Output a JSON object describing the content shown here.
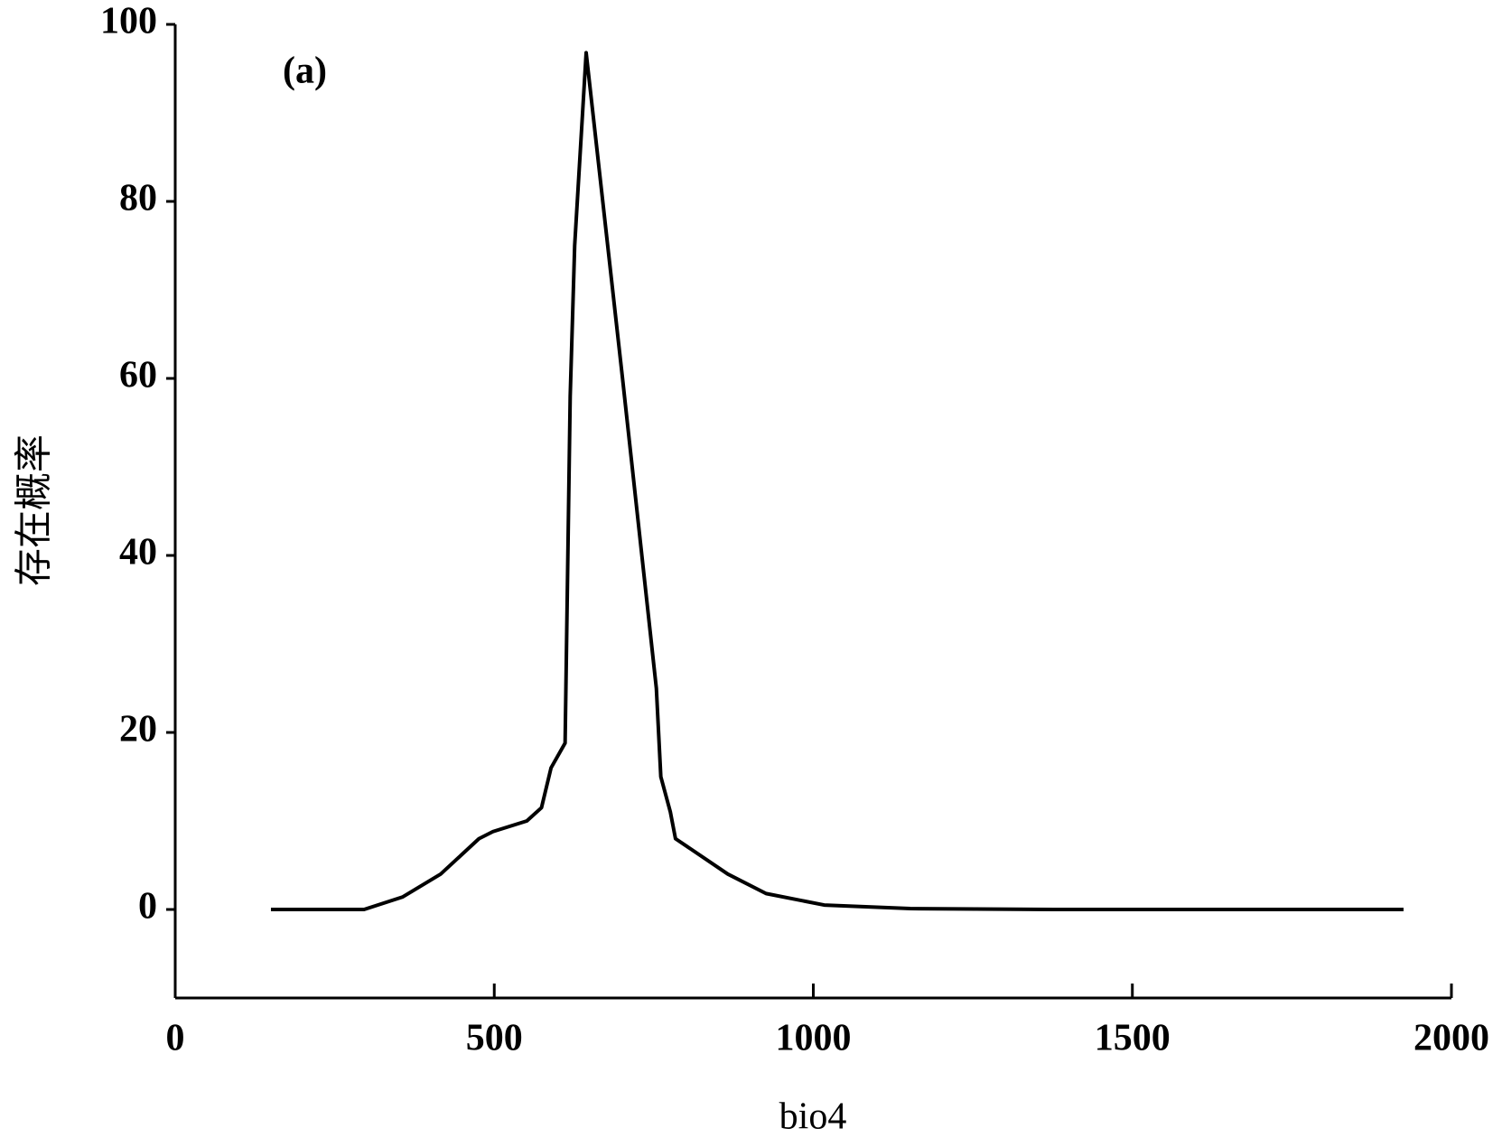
{
  "chart_data": {
    "type": "line",
    "annotation": "(a)",
    "x_label": "bio4",
    "y_label": "存在概率",
    "x": [
      150,
      296,
      356,
      416,
      476,
      498,
      551,
      574,
      589,
      611,
      619,
      626,
      644,
      701,
      754,
      761,
      776,
      784,
      866,
      926,
      1017,
      1152,
      1377,
      1925
    ],
    "values": [
      0,
      0,
      1.4,
      4,
      8,
      8.8,
      10,
      11.5,
      16,
      18.8,
      58,
      75,
      96.8,
      60,
      25,
      15,
      11,
      8,
      4,
      1.8,
      0.5,
      0.1,
      0,
      0
    ],
    "color": "#000000",
    "xlim": [
      0,
      2000
    ],
    "xticks": [
      0,
      500,
      1000,
      1500,
      2000
    ],
    "ylim": [
      -10,
      100
    ],
    "yticks": [
      0,
      20,
      40,
      60,
      80,
      100
    ],
    "grid": false
  }
}
